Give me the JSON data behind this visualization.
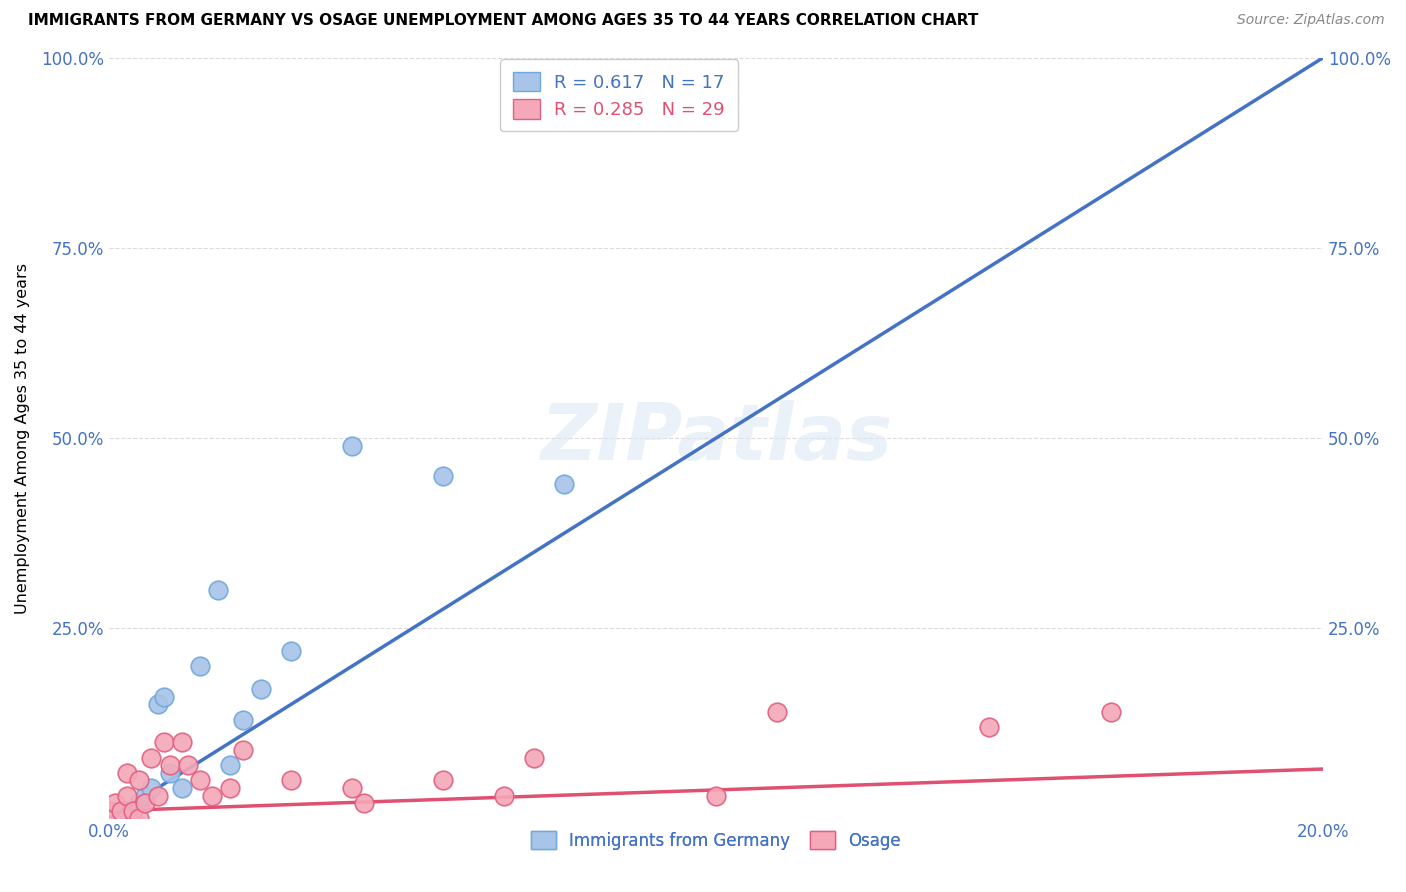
{
  "title": "IMMIGRANTS FROM GERMANY VS OSAGE UNEMPLOYMENT AMONG AGES 35 TO 44 YEARS CORRELATION CHART",
  "source": "Source: ZipAtlas.com",
  "ylabel": "Unemployment Among Ages 35 to 44 years",
  "xlim": [
    0.0,
    0.2
  ],
  "ylim": [
    0.0,
    1.0
  ],
  "germany_color": "#a8c4e8",
  "germany_edge_color": "#6fa8dc",
  "osage_color": "#f4a8b8",
  "osage_edge_color": "#e06080",
  "trendline_germany_color": "#4472c4",
  "trendline_osage_color": "#e05070",
  "diagonal_color": "#c0c0c0",
  "r_germany": 0.617,
  "n_germany": 17,
  "r_osage": 0.285,
  "n_osage": 29,
  "legend_label_germany": "Immigrants from Germany",
  "legend_label_osage": "Osage",
  "watermark": "ZIPatlas",
  "trendline_germany_x0": 0.0,
  "trendline_germany_y0": 0.0,
  "trendline_germany_x1": 0.2,
  "trendline_germany_y1": 1.0,
  "trendline_osage_x0": 0.0,
  "trendline_osage_y0": 0.01,
  "trendline_osage_x1": 0.2,
  "trendline_osage_y1": 0.065,
  "germany_scatter_x": [
    0.003,
    0.005,
    0.006,
    0.007,
    0.008,
    0.009,
    0.01,
    0.012,
    0.015,
    0.018,
    0.02,
    0.022,
    0.025,
    0.03,
    0.04,
    0.055,
    0.075
  ],
  "germany_scatter_y": [
    0.01,
    0.02,
    0.03,
    0.04,
    0.15,
    0.16,
    0.06,
    0.04,
    0.2,
    0.3,
    0.07,
    0.13,
    0.17,
    0.22,
    0.49,
    0.45,
    0.44
  ],
  "osage_scatter_x": [
    0.0,
    0.001,
    0.002,
    0.003,
    0.003,
    0.004,
    0.005,
    0.005,
    0.006,
    0.007,
    0.008,
    0.009,
    0.01,
    0.012,
    0.013,
    0.015,
    0.017,
    0.02,
    0.022,
    0.03,
    0.04,
    0.042,
    0.055,
    0.065,
    0.07,
    0.1,
    0.11,
    0.145,
    0.165
  ],
  "osage_scatter_y": [
    0.01,
    0.02,
    0.01,
    0.03,
    0.06,
    0.01,
    0.05,
    0.0,
    0.02,
    0.08,
    0.03,
    0.1,
    0.07,
    0.1,
    0.07,
    0.05,
    0.03,
    0.04,
    0.09,
    0.05,
    0.04,
    0.02,
    0.05,
    0.03,
    0.08,
    0.03,
    0.14,
    0.12,
    0.14
  ]
}
